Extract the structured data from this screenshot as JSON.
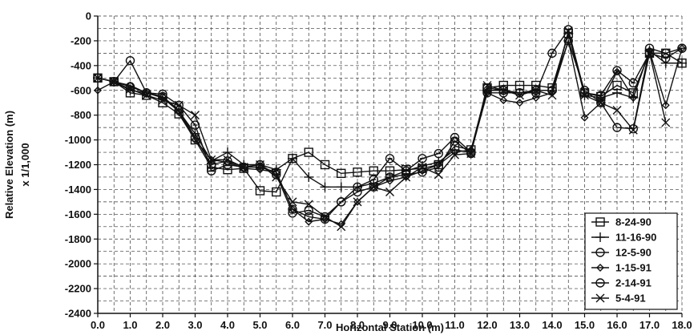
{
  "chart_data": {
    "type": "line",
    "title": "",
    "xlabel": "Horizontal Station (m)",
    "ylabel": [
      "Relative Elevation (m)",
      "x 1/1,000"
    ],
    "xlim": [
      0,
      18
    ],
    "ylim": [
      -2400,
      0
    ],
    "x_ticks": [
      0,
      1,
      2,
      3,
      4,
      5,
      6,
      7,
      8,
      9,
      10,
      11,
      12,
      13,
      14,
      15,
      16,
      17,
      18
    ],
    "x_tick_labels": [
      "0.0",
      "1.0",
      "2.0",
      "3.0",
      "4.0",
      "5.0",
      "6.0",
      "7.0",
      "8.0",
      "9.0",
      "10.0",
      "11.0",
      "12.0",
      "13.0",
      "14.0",
      "15.0",
      "16.0",
      "17.0",
      "18.0"
    ],
    "y_ticks": [
      0,
      -200,
      -400,
      -600,
      -800,
      -1000,
      -1200,
      -1400,
      -1600,
      -1800,
      -2000,
      -2200,
      -2400
    ],
    "y_tick_labels": [
      "0",
      "-200",
      "-400",
      "-600",
      "-800",
      "-1000",
      "-1200",
      "-1400",
      "-1600",
      "-1800",
      "-2000",
      "-2200",
      "-2400"
    ],
    "x_minor_step": 0.5,
    "y_minor_step": 100,
    "grid": true,
    "legend_position": "bottom-right",
    "series": [
      {
        "name": "8-24-90",
        "marker": "square",
        "x": [
          0,
          0.5,
          1,
          1.5,
          2,
          2.5,
          3,
          3.5,
          4,
          4.5,
          5,
          5.5,
          6,
          6.5,
          7,
          7.5,
          8,
          8.5,
          9,
          9.5,
          10,
          10.5,
          11,
          11.5,
          12,
          12.5,
          13,
          13.5,
          14,
          14.5,
          15,
          15.5,
          16,
          16.5,
          17,
          17.5,
          18
        ],
        "y": [
          -500,
          -530,
          -620,
          -640,
          -700,
          -790,
          -1000,
          -1220,
          -1240,
          -1230,
          -1410,
          -1420,
          -1150,
          -1100,
          -1200,
          -1270,
          -1260,
          -1250,
          -1250,
          -1240,
          -1230,
          -1200,
          -1050,
          -1080,
          -580,
          -560,
          -560,
          -560,
          -580,
          -140,
          -620,
          -650,
          -560,
          -620,
          -300,
          -300,
          -380
        ]
      },
      {
        "name": "11-16-90",
        "marker": "plus",
        "x": [
          0,
          0.5,
          1,
          1.5,
          2,
          2.5,
          3,
          3.5,
          4,
          4.5,
          5,
          5.5,
          6,
          6.5,
          7,
          7.5,
          8,
          8.5,
          9,
          9.5,
          10,
          10.5,
          11,
          11.5,
          12,
          12.5,
          13,
          13.5,
          14,
          14.5,
          15,
          15.5,
          16,
          16.5,
          17,
          17.5,
          18
        ],
        "y": [
          -500,
          -530,
          -600,
          -620,
          -660,
          -770,
          -950,
          -1170,
          -1100,
          -1200,
          -1200,
          -1240,
          -1150,
          -1300,
          -1380,
          -1380,
          -1380,
          -1350,
          -1300,
          -1250,
          -1210,
          -1180,
          -1080,
          -1100,
          -600,
          -600,
          -620,
          -600,
          -600,
          -140,
          -640,
          -660,
          -620,
          -660,
          -280,
          -380,
          -380
        ]
      },
      {
        "name": "12-5-90",
        "marker": "circle",
        "x": [
          0,
          0.5,
          1,
          1.5,
          2,
          2.5,
          3,
          3.5,
          4,
          4.5,
          5,
          5.5,
          6,
          6.5,
          7,
          7.5,
          8,
          8.5,
          9,
          9.5,
          10,
          10.5,
          11,
          11.5,
          12,
          12.5,
          13,
          13.5,
          14,
          14.5,
          15,
          15.5,
          16,
          16.5,
          17,
          17.5,
          18
        ],
        "y": [
          -500,
          -530,
          -360,
          -620,
          -650,
          -760,
          -980,
          -1200,
          -1170,
          -1220,
          -1220,
          -1260,
          -1560,
          -1620,
          -1640,
          -1500,
          -1420,
          -1380,
          -1300,
          -1280,
          -1260,
          -1220,
          -1010,
          -1110,
          -580,
          -600,
          -620,
          -600,
          -600,
          -200,
          -600,
          -700,
          -900,
          -910,
          -260,
          -300,
          -260
        ]
      },
      {
        "name": "1-15-91",
        "marker": "diamond",
        "x": [
          0,
          0.5,
          1,
          1.5,
          2,
          2.5,
          3,
          3.5,
          4,
          4.5,
          5,
          5.5,
          6,
          6.5,
          7,
          7.5,
          8,
          8.5,
          9,
          9.5,
          10,
          10.5,
          11,
          11.5,
          12,
          12.5,
          13,
          13.5,
          14,
          14.5,
          15,
          15.5,
          16,
          16.5,
          17,
          17.5,
          18
        ],
        "y": [
          -600,
          -530,
          -560,
          -620,
          -650,
          -770,
          -1000,
          -1160,
          -1180,
          -1230,
          -1240,
          -1260,
          -1560,
          -1660,
          -1640,
          -1680,
          -1500,
          -1380,
          -1330,
          -1300,
          -1250,
          -1200,
          -1100,
          -1080,
          -620,
          -680,
          -700,
          -660,
          -620,
          -200,
          -820,
          -700,
          -450,
          -660,
          -280,
          -720,
          -260
        ]
      },
      {
        "name": "2-14-91",
        "marker": "circle-dot",
        "x": [
          0,
          0.5,
          1,
          1.5,
          2,
          2.5,
          3,
          3.5,
          4,
          4.5,
          5,
          5.5,
          6,
          6.5,
          7,
          7.5,
          8,
          8.5,
          9,
          9.5,
          10,
          10.5,
          11,
          11.5,
          12,
          12.5,
          13,
          13.5,
          14,
          14.5,
          15,
          15.5,
          16,
          16.5,
          17,
          17.5,
          18
        ],
        "y": [
          -500,
          -530,
          -570,
          -620,
          -630,
          -720,
          -880,
          -1250,
          -1200,
          -1220,
          -1200,
          -1280,
          -1590,
          -1570,
          -1620,
          -1500,
          -1380,
          -1320,
          -1150,
          -1250,
          -1150,
          -1110,
          -980,
          -1100,
          -620,
          -620,
          -620,
          -620,
          -300,
          -110,
          -620,
          -640,
          -440,
          -540,
          -300,
          -340,
          -260
        ]
      },
      {
        "name": "5-4-91",
        "marker": "x",
        "x": [
          0,
          0.5,
          1,
          1.5,
          2,
          2.5,
          3,
          3.5,
          4,
          4.5,
          5,
          5.5,
          6,
          6.5,
          7,
          7.5,
          8,
          8.5,
          9,
          9.5,
          10,
          10.5,
          11,
          11.5,
          12,
          12.5,
          13,
          13.5,
          14,
          14.5,
          15,
          15.5,
          16,
          16.5,
          17,
          17.5
        ],
        "y": [
          -500,
          -530,
          -590,
          -640,
          -680,
          -720,
          -800,
          -1160,
          -1160,
          -1220,
          -1200,
          -1300,
          -1500,
          -1520,
          -1620,
          -1700,
          -1500,
          -1380,
          -1420,
          -1300,
          -1220,
          -1280,
          -1120,
          -1110,
          -560,
          -600,
          -640,
          -600,
          -640,
          -120,
          -640,
          -700,
          -760,
          -920,
          -300,
          -860
        ]
      }
    ]
  }
}
